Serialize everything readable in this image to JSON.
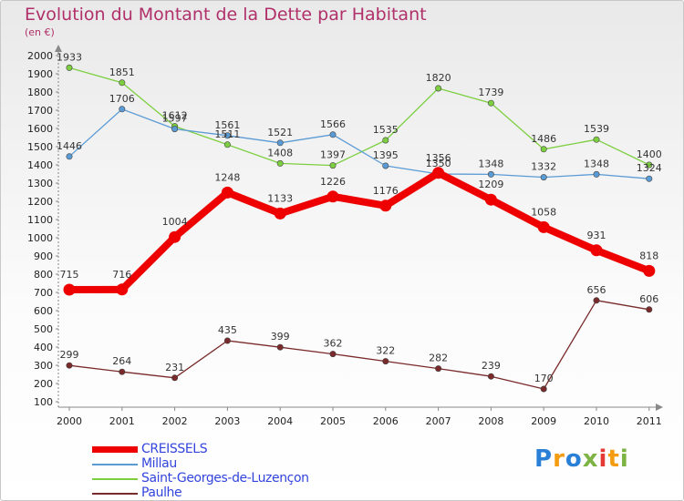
{
  "header": {
    "title": "Evolution du Montant de la Dette par Habitant",
    "unit": "(en €)"
  },
  "logo": {
    "text": "Proxiti",
    "colors": [
      "#2a7fd6",
      "#f39c12",
      "#2a7fd6",
      "#7cb342",
      "#e53935",
      "#f39c12",
      "#7cb342"
    ]
  },
  "chart_data": {
    "type": "line",
    "x": [
      "2000",
      "2001",
      "2002",
      "2003",
      "2004",
      "2005",
      "2006",
      "2007",
      "2008",
      "2009",
      "2010",
      "2011"
    ],
    "yticks": [
      "100",
      "200",
      "300",
      "400",
      "500",
      "600",
      "700",
      "800",
      "900",
      "1000",
      "1100",
      "1200",
      "1300",
      "1400",
      "1500",
      "1600",
      "1700",
      "1800",
      "1900",
      "2000"
    ],
    "ylim": [
      100,
      2000
    ],
    "grid": false,
    "legend_position": "bottom-left",
    "series": [
      {
        "name": "CREISSELS",
        "color": "#ee0000",
        "thick": true,
        "values": [
          715,
          716,
          1004,
          1248,
          1133,
          1226,
          1176,
          1356,
          1209,
          1058,
          931,
          818
        ],
        "labels": [
          "715",
          "716",
          "1004",
          "1248",
          "1133",
          "1226",
          "1176",
          "1356",
          "1209",
          "1058",
          "931",
          "818"
        ]
      },
      {
        "name": "Millau",
        "color": "#5b9bd5",
        "thick": false,
        "values": [
          1446,
          1706,
          1597,
          1561,
          1521,
          1566,
          1395,
          1350,
          1348,
          1332,
          1348,
          1324
        ],
        "labels": [
          "1446",
          "1706",
          "1597",
          "1561",
          "1521",
          "1566",
          "1395",
          "1350",
          "1348",
          "1332",
          "1348",
          "1324"
        ]
      },
      {
        "name": "Saint-Georges-de-Luzençon",
        "color": "#7dcf40",
        "thick": false,
        "values": [
          1933,
          1851,
          1612,
          1511,
          1408,
          1397,
          1535,
          1820,
          1739,
          1486,
          1539,
          1400
        ],
        "labels": [
          "1933",
          "1851",
          "1612",
          "1511",
          "1408",
          "1397",
          "1535",
          "1820",
          "1739",
          "1486",
          "1539",
          "1400"
        ]
      },
      {
        "name": "Paulhe",
        "color": "#7a2a2a",
        "thick": false,
        "values": [
          299,
          264,
          231,
          435,
          399,
          362,
          322,
          282,
          239,
          170,
          656,
          606
        ],
        "labels": [
          "299",
          "264",
          "231",
          "435",
          "399",
          "362",
          "322",
          "282",
          "239",
          "170",
          "656",
          "606"
        ]
      }
    ]
  }
}
